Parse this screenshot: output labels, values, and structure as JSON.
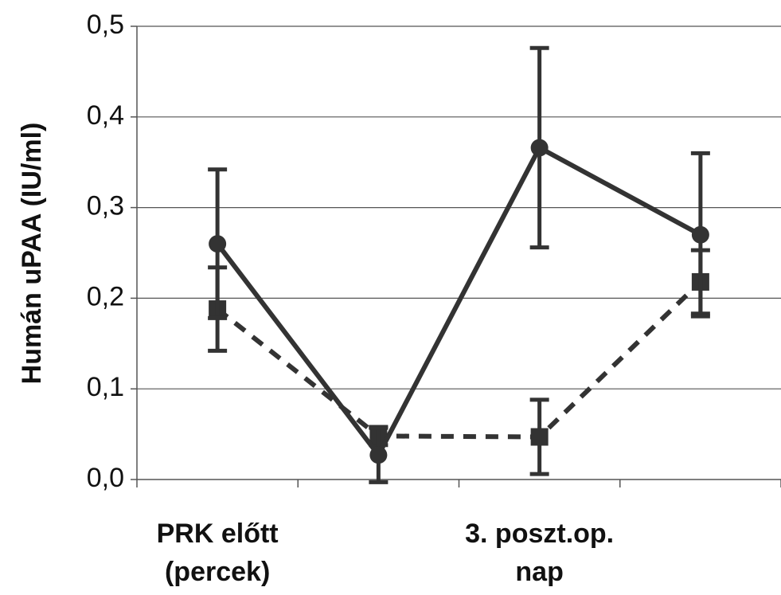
{
  "chart_data": {
    "type": "line",
    "y_label": "Humán uPAA (IU/ml)",
    "categories": [
      "PRK előtt\n(percek)",
      null,
      "3. poszt.op.\nnap",
      null
    ],
    "series": [
      {
        "color": "#333333",
        "line_style": "solid",
        "marker": "circle",
        "values": [
          0.26,
          0.027,
          0.366,
          0.27
        ],
        "errors": [
          0.082,
          0.03,
          0.11,
          0.09
        ]
      },
      {
        "color": "#333333",
        "line_style": "dashed",
        "marker": "square",
        "values": [
          0.188,
          0.048,
          0.047,
          0.218
        ],
        "errors": [
          0.046,
          0.01,
          0.041,
          0.035
        ]
      }
    ],
    "ylim": [
      0,
      0.5
    ],
    "yticks": [
      {
        "value": 0,
        "label": "0,0"
      },
      {
        "value": 0.1,
        "label": "0,1"
      },
      {
        "value": 0.2,
        "label": "0,2"
      },
      {
        "value": 0.3,
        "label": "0,3"
      },
      {
        "value": 0.4,
        "label": "0,4"
      },
      {
        "value": 0.5,
        "label": "0,5"
      }
    ],
    "grid": true
  }
}
